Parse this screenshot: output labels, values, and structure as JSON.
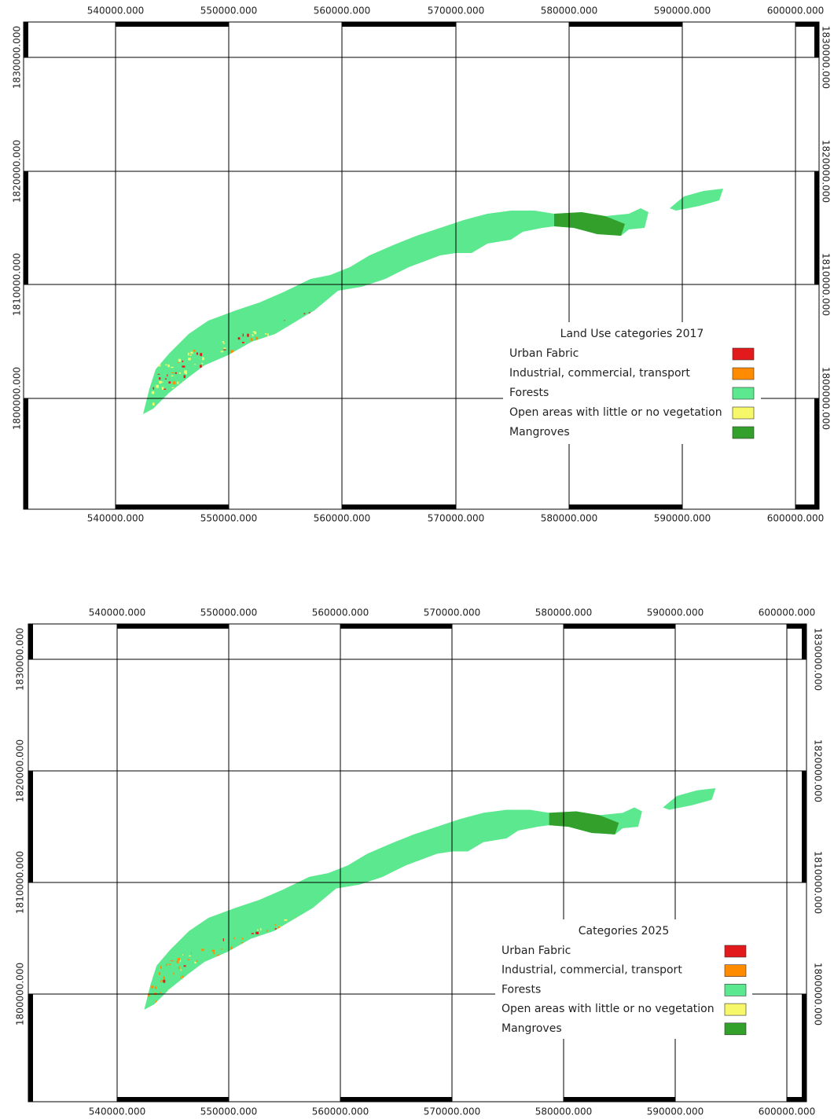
{
  "maps": [
    {
      "x_labels": [
        "540000.000",
        "550000.000",
        "560000.000",
        "570000.000",
        "580000.000",
        "590000.000",
        "600000.000"
      ],
      "y_labels": [
        "1830000.000",
        "1820000.000",
        "1810000.000",
        "1800000.000"
      ],
      "legend": {
        "title": "Land Use categories 2017",
        "items": [
          {
            "label": "Urban Fabric",
            "color": "#e31a1c"
          },
          {
            "label": "Industrial, commercial, transport",
            "color": "#ff8c00"
          },
          {
            "label": "Forests",
            "color": "#5ce88e"
          },
          {
            "label": "Open areas with little or no vegetation",
            "color": "#f7f76a"
          },
          {
            "label": "Mangroves",
            "color": "#33a02c"
          }
        ]
      }
    },
    {
      "x_labels": [
        "540000.000",
        "550000.000",
        "560000.000",
        "570000.000",
        "580000.000",
        "590000.000",
        "600000.000"
      ],
      "y_labels": [
        "1830000.000",
        "1820000.000",
        "1810000.000",
        "1800000.000"
      ],
      "legend": {
        "title": "Categories 2025",
        "items": [
          {
            "label": "Urban Fabric",
            "color": "#e31a1c"
          },
          {
            "label": "Industrial, commercial, transport",
            "color": "#ff8c00"
          },
          {
            "label": "Forests",
            "color": "#5ce88e"
          },
          {
            "label": "Open areas with little or no vegetation",
            "color": "#f7f76a"
          },
          {
            "label": "Mangroves",
            "color": "#33a02c"
          }
        ]
      }
    }
  ]
}
